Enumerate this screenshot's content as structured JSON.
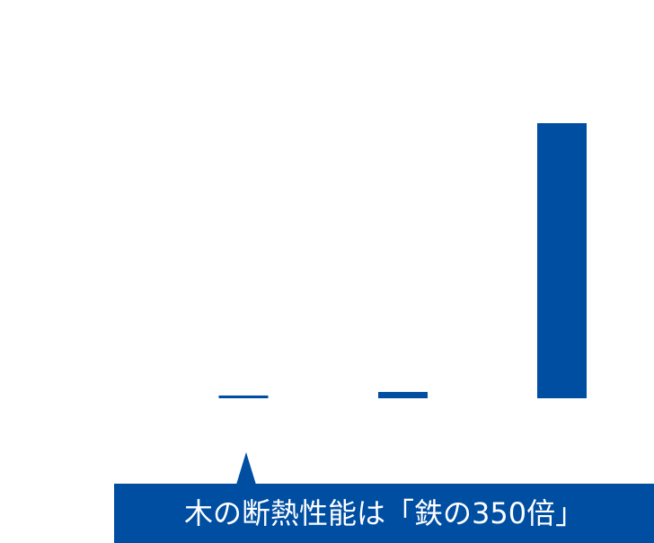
{
  "chart_data": {
    "type": "bar",
    "categories": [
      "",
      "",
      ""
    ],
    "values": [
      1,
      2.3,
      100
    ],
    "ylim": [
      0,
      100
    ],
    "grid": false,
    "legend": "none",
    "bar_color": "#004ea2"
  },
  "callout": {
    "text": "木の断熱性能は「鉄の350倍」",
    "background": "#004ea2",
    "text_color": "#ffffff"
  }
}
